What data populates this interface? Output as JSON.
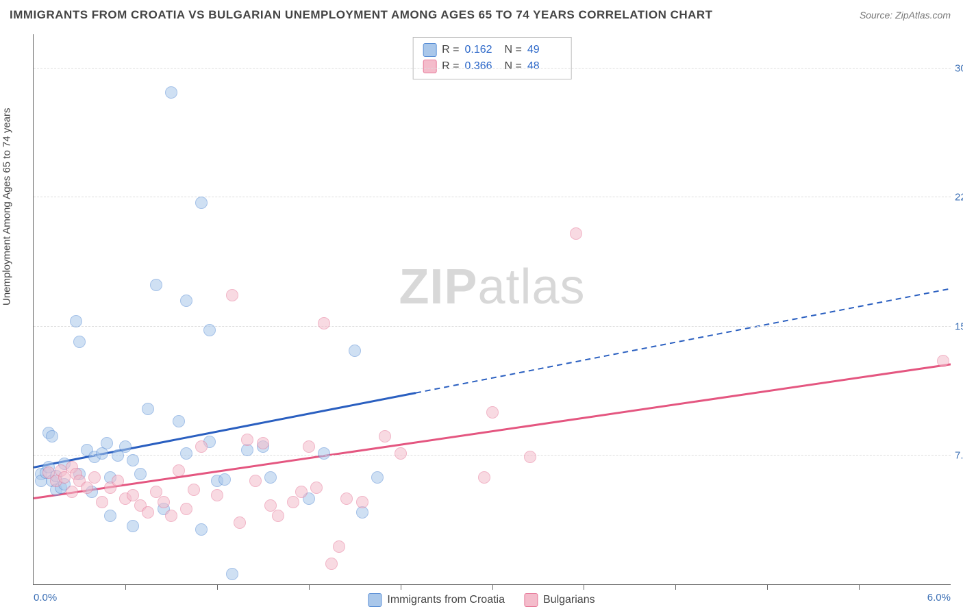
{
  "title": "IMMIGRANTS FROM CROATIA VS BULGARIAN UNEMPLOYMENT AMONG AGES 65 TO 74 YEARS CORRELATION CHART",
  "source": "Source: ZipAtlas.com",
  "yaxis_title": "Unemployment Among Ages 65 to 74 years",
  "watermark_bold": "ZIP",
  "watermark_thin": "atlas",
  "chart": {
    "type": "scatter",
    "xlim": [
      0.0,
      6.0
    ],
    "ylim": [
      0.0,
      32.0
    ],
    "xlabel_min": "0.0%",
    "xlabel_max": "6.0%",
    "yticks": [
      {
        "v": 7.5,
        "label": "7.5%"
      },
      {
        "v": 15.0,
        "label": "15.0%"
      },
      {
        "v": 22.5,
        "label": "22.5%"
      },
      {
        "v": 30.0,
        "label": "30.0%"
      }
    ],
    "xticks": [
      0.6,
      1.2,
      1.8,
      2.4,
      3.0,
      3.6,
      4.2,
      4.8,
      5.4
    ],
    "grid_color": "#dddddd",
    "axis_color": "#666666",
    "label_color": "#3b6fb5",
    "background_color": "#ffffff",
    "marker_radius": 9,
    "marker_opacity": 0.55,
    "series": [
      {
        "name": "Immigrants from Croatia",
        "fill": "#a9c7ea",
        "stroke": "#5a8fd6",
        "line_color": "#2a5fc0",
        "R": "0.162",
        "N": "49",
        "trend": {
          "x1": 0.0,
          "y1": 6.8,
          "x2": 6.0,
          "y2": 17.2,
          "solid_until_x": 2.5
        },
        "points": [
          [
            0.05,
            6.4
          ],
          [
            0.05,
            6.0
          ],
          [
            0.08,
            6.5
          ],
          [
            0.1,
            6.8
          ],
          [
            0.1,
            8.8
          ],
          [
            0.12,
            8.6
          ],
          [
            0.12,
            6.0
          ],
          [
            0.15,
            5.5
          ],
          [
            0.15,
            6.3
          ],
          [
            0.18,
            5.6
          ],
          [
            0.2,
            5.8
          ],
          [
            0.2,
            7.0
          ],
          [
            0.28,
            15.3
          ],
          [
            0.3,
            14.1
          ],
          [
            0.3,
            6.4
          ],
          [
            0.35,
            7.8
          ],
          [
            0.38,
            5.4
          ],
          [
            0.4,
            7.4
          ],
          [
            0.45,
            7.6
          ],
          [
            0.48,
            8.2
          ],
          [
            0.5,
            6.2
          ],
          [
            0.5,
            4.0
          ],
          [
            0.55,
            7.5
          ],
          [
            0.6,
            8.0
          ],
          [
            0.65,
            7.2
          ],
          [
            0.65,
            3.4
          ],
          [
            0.7,
            6.4
          ],
          [
            0.75,
            10.2
          ],
          [
            0.8,
            17.4
          ],
          [
            0.85,
            4.4
          ],
          [
            0.9,
            28.6
          ],
          [
            0.95,
            9.5
          ],
          [
            1.0,
            16.5
          ],
          [
            1.0,
            7.6
          ],
          [
            1.1,
            22.2
          ],
          [
            1.1,
            3.2
          ],
          [
            1.15,
            8.3
          ],
          [
            1.15,
            14.8
          ],
          [
            1.2,
            6.0
          ],
          [
            1.25,
            6.1
          ],
          [
            1.3,
            0.6
          ],
          [
            1.4,
            7.8
          ],
          [
            1.5,
            8.0
          ],
          [
            1.55,
            6.2
          ],
          [
            1.8,
            5.0
          ],
          [
            1.9,
            7.6
          ],
          [
            2.1,
            13.6
          ],
          [
            2.15,
            4.2
          ],
          [
            2.25,
            6.2
          ]
        ]
      },
      {
        "name": "Bulgarians",
        "fill": "#f4bccb",
        "stroke": "#e77a9a",
        "line_color": "#e45680",
        "R": "0.366",
        "N": "48",
        "trend": {
          "x1": 0.0,
          "y1": 5.0,
          "x2": 6.0,
          "y2": 12.8,
          "solid_until_x": 6.0
        },
        "points": [
          [
            0.1,
            6.5
          ],
          [
            0.15,
            6.0
          ],
          [
            0.18,
            6.6
          ],
          [
            0.2,
            6.2
          ],
          [
            0.25,
            5.4
          ],
          [
            0.25,
            6.8
          ],
          [
            0.28,
            6.4
          ],
          [
            0.3,
            6.0
          ],
          [
            0.35,
            5.6
          ],
          [
            0.4,
            6.2
          ],
          [
            0.45,
            4.8
          ],
          [
            0.5,
            5.6
          ],
          [
            0.55,
            6.0
          ],
          [
            0.6,
            5.0
          ],
          [
            0.65,
            5.2
          ],
          [
            0.7,
            4.6
          ],
          [
            0.75,
            4.2
          ],
          [
            0.8,
            5.4
          ],
          [
            0.85,
            4.8
          ],
          [
            0.9,
            4.0
          ],
          [
            0.95,
            6.6
          ],
          [
            1.0,
            4.4
          ],
          [
            1.05,
            5.5
          ],
          [
            1.1,
            8.0
          ],
          [
            1.2,
            5.2
          ],
          [
            1.3,
            16.8
          ],
          [
            1.35,
            3.6
          ],
          [
            1.4,
            8.4
          ],
          [
            1.45,
            6.0
          ],
          [
            1.5,
            8.2
          ],
          [
            1.55,
            4.6
          ],
          [
            1.6,
            4.0
          ],
          [
            1.7,
            4.8
          ],
          [
            1.75,
            5.4
          ],
          [
            1.8,
            8.0
          ],
          [
            1.85,
            5.6
          ],
          [
            1.9,
            15.2
          ],
          [
            1.95,
            1.2
          ],
          [
            2.0,
            2.2
          ],
          [
            2.05,
            5.0
          ],
          [
            2.15,
            4.8
          ],
          [
            2.3,
            8.6
          ],
          [
            2.4,
            7.6
          ],
          [
            2.95,
            6.2
          ],
          [
            3.0,
            10.0
          ],
          [
            3.25,
            7.4
          ],
          [
            3.55,
            20.4
          ],
          [
            5.95,
            13.0
          ]
        ]
      }
    ]
  },
  "legend": {
    "series1_label": "Immigrants from Croatia",
    "series2_label": "Bulgarians"
  }
}
